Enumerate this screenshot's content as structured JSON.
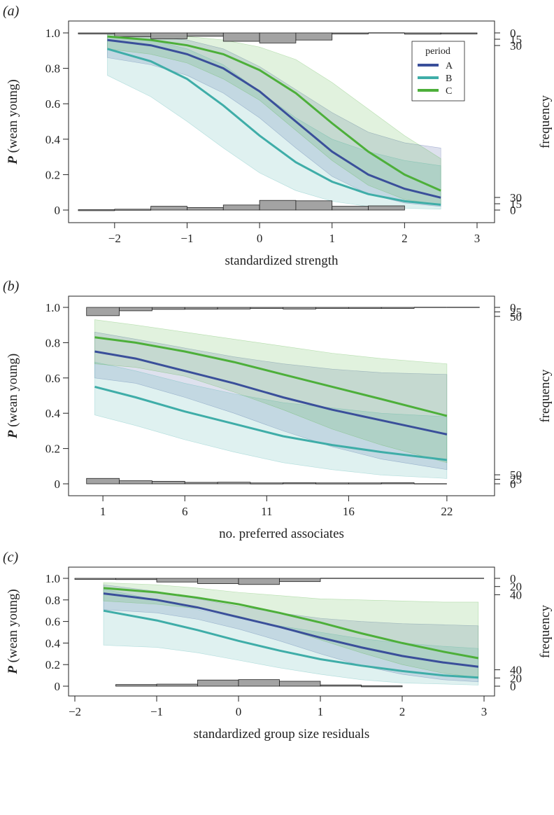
{
  "chart_data": [
    {
      "type": "line",
      "panel_label": "(a)",
      "xlabel": "standardized strength",
      "ylabel": "P (wean young)",
      "ylabel_parts": [
        "P",
        " (wean young)"
      ],
      "y2label": "frequency",
      "xlim": [
        -2.5,
        3.0
      ],
      "ylim": [
        0,
        1
      ],
      "x_ticks": [
        -2,
        -1,
        0,
        1,
        2,
        3
      ],
      "x_tick_labels": [
        "−2",
        "−1",
        "0",
        "1",
        "2",
        "3"
      ],
      "y_ticks": [
        0,
        0.2,
        0.4,
        0.6,
        0.8,
        1.0
      ],
      "y_tick_labels": [
        "0",
        "0.2",
        "0.4",
        "0.6",
        "0.8",
        "1.0"
      ],
      "freq_top_ticks": [
        0,
        15,
        30
      ],
      "freq_bottom_ticks": [
        0,
        15,
        30
      ],
      "legend": {
        "title": "period",
        "position": "top-right",
        "entries": [
          "A",
          "B",
          "C"
        ]
      },
      "series": [
        {
          "name": "A",
          "color": "#3a4f9a",
          "x": [
            -2.1,
            -1.5,
            -1.0,
            -0.5,
            0.0,
            0.5,
            1.0,
            1.5,
            2.0,
            2.5
          ],
          "values": [
            0.96,
            0.93,
            0.88,
            0.8,
            0.67,
            0.5,
            0.33,
            0.2,
            0.12,
            0.07
          ],
          "lower": [
            0.86,
            0.82,
            0.76,
            0.66,
            0.52,
            0.35,
            0.19,
            0.09,
            0.04,
            0.02
          ],
          "upper": [
            0.99,
            0.98,
            0.96,
            0.91,
            0.81,
            0.68,
            0.55,
            0.44,
            0.38,
            0.35
          ]
        },
        {
          "name": "B",
          "color": "#3fada8",
          "x": [
            -2.1,
            -1.5,
            -1.0,
            -0.5,
            0.0,
            0.5,
            1.0,
            1.5,
            2.0,
            2.5
          ],
          "values": [
            0.91,
            0.84,
            0.74,
            0.59,
            0.42,
            0.27,
            0.16,
            0.09,
            0.05,
            0.03
          ],
          "lower": [
            0.76,
            0.64,
            0.5,
            0.35,
            0.21,
            0.11,
            0.05,
            0.02,
            0.01,
            0.005
          ],
          "upper": [
            0.98,
            0.96,
            0.91,
            0.82,
            0.67,
            0.52,
            0.4,
            0.33,
            0.28,
            0.25
          ]
        },
        {
          "name": "C",
          "color": "#4daf3a",
          "x": [
            -2.1,
            -1.5,
            -1.0,
            -0.5,
            0.0,
            0.5,
            1.0,
            1.5,
            2.0,
            2.5
          ],
          "values": [
            0.98,
            0.96,
            0.93,
            0.88,
            0.79,
            0.66,
            0.49,
            0.33,
            0.2,
            0.11
          ],
          "lower": [
            0.91,
            0.88,
            0.83,
            0.74,
            0.62,
            0.45,
            0.28,
            0.14,
            0.06,
            0.03
          ],
          "upper": [
            0.995,
            0.99,
            0.98,
            0.96,
            0.92,
            0.85,
            0.72,
            0.57,
            0.42,
            0.29
          ]
        }
      ],
      "hist_top": {
        "bins": [
          -2.5,
          -2.0,
          -1.5,
          -1.0,
          -0.5,
          0.0,
          0.5,
          1.0,
          1.5,
          2.0,
          2.5,
          3.0
        ],
        "counts": [
          1,
          9,
          14,
          8,
          20,
          24,
          17,
          1,
          0,
          3,
          2
        ]
      },
      "hist_bottom": {
        "bins": [
          -2.5,
          -2.0,
          -1.5,
          -1.0,
          -0.5,
          0.0,
          0.5,
          1.0,
          1.5,
          2.0
        ],
        "counts": [
          1,
          2,
          9,
          6,
          12,
          23,
          22,
          9,
          10
        ]
      }
    },
    {
      "type": "line",
      "panel_label": "(b)",
      "xlabel": "no. preferred associates",
      "ylabel": "P (wean young)",
      "ylabel_parts": [
        "P",
        " (wean young)"
      ],
      "y2label": "frequency",
      "xlim": [
        -0.5,
        23.5
      ],
      "ylim": [
        0,
        1
      ],
      "x_ticks": [
        1,
        6,
        11,
        16,
        22
      ],
      "x_tick_labels": [
        "1",
        "6",
        "11",
        "16",
        "22"
      ],
      "y_ticks": [
        0,
        0.2,
        0.4,
        0.6,
        0.8,
        1.0
      ],
      "y_tick_labels": [
        "0",
        "0.2",
        "0.4",
        "0.6",
        "0.8",
        "1.0"
      ],
      "freq_top_ticks": [
        0,
        25,
        50
      ],
      "freq_bottom_ticks": [
        0,
        25,
        50
      ],
      "series": [
        {
          "name": "A",
          "color": "#3a4f9a",
          "x": [
            0.5,
            3,
            6,
            9,
            12,
            15,
            18,
            22
          ],
          "values": [
            0.75,
            0.71,
            0.64,
            0.57,
            0.49,
            0.42,
            0.36,
            0.28
          ],
          "lower": [
            0.6,
            0.57,
            0.49,
            0.4,
            0.3,
            0.21,
            0.14,
            0.08
          ],
          "upper": [
            0.86,
            0.82,
            0.77,
            0.72,
            0.68,
            0.65,
            0.63,
            0.62
          ]
        },
        {
          "name": "B",
          "color": "#3fada8",
          "x": [
            0.5,
            3,
            6,
            9,
            12,
            15,
            18,
            22
          ],
          "values": [
            0.55,
            0.49,
            0.41,
            0.34,
            0.27,
            0.22,
            0.18,
            0.135
          ],
          "lower": [
            0.39,
            0.33,
            0.25,
            0.18,
            0.12,
            0.08,
            0.05,
            0.03
          ],
          "upper": [
            0.69,
            0.64,
            0.57,
            0.51,
            0.46,
            0.43,
            0.4,
            0.38
          ]
        },
        {
          "name": "C",
          "color": "#4daf3a",
          "x": [
            0.5,
            3,
            6,
            9,
            12,
            15,
            18,
            22
          ],
          "values": [
            0.83,
            0.8,
            0.75,
            0.69,
            0.62,
            0.55,
            0.48,
            0.385
          ],
          "lower": [
            0.68,
            0.66,
            0.61,
            0.52,
            0.42,
            0.31,
            0.22,
            0.12
          ],
          "upper": [
            0.93,
            0.9,
            0.86,
            0.82,
            0.78,
            0.74,
            0.71,
            0.68
          ]
        }
      ],
      "hist_top": {
        "bins": [
          0,
          2,
          4,
          6,
          8,
          10,
          12,
          14,
          16,
          18,
          20,
          22,
          24
        ],
        "counts": [
          46,
          19,
          11,
          10,
          9,
          5,
          9,
          4,
          2,
          1,
          0,
          0
        ]
      },
      "hist_bottom": {
        "bins": [
          0,
          2,
          4,
          6,
          8,
          10,
          12,
          14,
          16,
          18,
          20,
          22
        ],
        "counts": [
          30,
          17,
          14,
          8,
          9,
          5,
          6,
          5,
          5,
          6,
          0
        ]
      }
    },
    {
      "type": "line",
      "panel_label": "(c)",
      "xlabel": "standardized group size residuals",
      "ylabel": "P (wean young)",
      "ylabel_parts": [
        "P",
        " (wean young)"
      ],
      "y2label": "frequency",
      "xlim": [
        -2.0,
        3.0
      ],
      "ylim": [
        0,
        1
      ],
      "x_ticks": [
        -2,
        -1,
        0,
        1,
        2,
        3
      ],
      "x_tick_labels": [
        "−2",
        "−1",
        "0",
        "1",
        "2",
        "3"
      ],
      "y_ticks": [
        0,
        0.2,
        0.4,
        0.6,
        0.8,
        1.0
      ],
      "y_tick_labels": [
        "0",
        "0.2",
        "0.4",
        "0.6",
        "0.8",
        "1.0"
      ],
      "freq_top_ticks": [
        0,
        20,
        40
      ],
      "freq_bottom_ticks": [
        0,
        20,
        40
      ],
      "series": [
        {
          "name": "A",
          "color": "#3a4f9a",
          "x": [
            -1.65,
            -1.0,
            -0.5,
            0.0,
            0.5,
            1.0,
            1.5,
            2.0,
            2.5,
            2.93
          ],
          "values": [
            0.86,
            0.8,
            0.73,
            0.64,
            0.55,
            0.45,
            0.36,
            0.28,
            0.22,
            0.18
          ],
          "lower": [
            0.71,
            0.68,
            0.62,
            0.53,
            0.42,
            0.3,
            0.19,
            0.11,
            0.06,
            0.04
          ],
          "upper": [
            0.94,
            0.88,
            0.81,
            0.74,
            0.68,
            0.63,
            0.6,
            0.58,
            0.57,
            0.56
          ]
        },
        {
          "name": "B",
          "color": "#3fada8",
          "x": [
            -1.65,
            -1.0,
            -0.5,
            0.0,
            0.5,
            1.0,
            1.5,
            2.0,
            2.5,
            2.93
          ],
          "values": [
            0.7,
            0.61,
            0.52,
            0.42,
            0.33,
            0.25,
            0.19,
            0.14,
            0.1,
            0.08
          ],
          "lower": [
            0.38,
            0.36,
            0.31,
            0.24,
            0.17,
            0.11,
            0.06,
            0.03,
            0.02,
            0.01
          ],
          "upper": [
            0.9,
            0.8,
            0.71,
            0.63,
            0.56,
            0.5,
            0.44,
            0.4,
            0.37,
            0.35
          ]
        },
        {
          "name": "C",
          "color": "#4daf3a",
          "x": [
            -1.65,
            -1.0,
            -0.5,
            0.0,
            0.5,
            1.0,
            1.5,
            2.0,
            2.5,
            2.93
          ],
          "values": [
            0.91,
            0.87,
            0.82,
            0.76,
            0.68,
            0.59,
            0.49,
            0.4,
            0.32,
            0.26
          ],
          "lower": [
            0.79,
            0.76,
            0.72,
            0.65,
            0.55,
            0.43,
            0.31,
            0.2,
            0.12,
            0.08
          ],
          "upper": [
            0.96,
            0.94,
            0.91,
            0.87,
            0.84,
            0.81,
            0.8,
            0.79,
            0.78,
            0.78
          ]
        }
      ],
      "hist_top": {
        "bins": [
          -2.0,
          -1.5,
          -1.0,
          -0.5,
          0.0,
          0.5,
          1.0,
          1.5,
          2.0,
          2.5,
          3.0
        ],
        "counts": [
          1,
          3,
          9,
          13,
          15,
          8,
          0,
          0,
          0,
          0
        ]
      },
      "hist_bottom": {
        "bins": [
          -1.5,
          -1.0,
          -0.5,
          0.0,
          0.5,
          1.0,
          1.5,
          2.0
        ],
        "counts": [
          4,
          5,
          15,
          16,
          12,
          3,
          1
        ]
      }
    }
  ]
}
